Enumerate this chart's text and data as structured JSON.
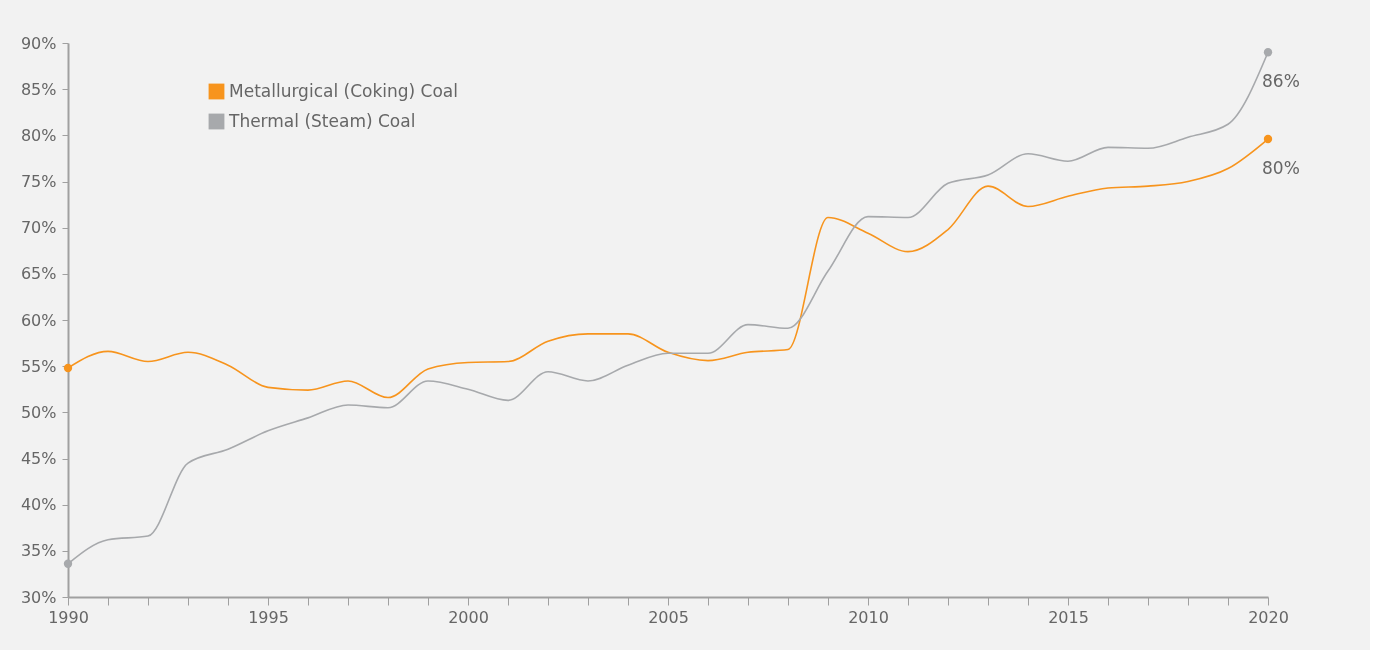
{
  "chart_data": {
    "type": "line",
    "x": [
      1990,
      1991,
      1992,
      1993,
      1994,
      1995,
      1996,
      1997,
      1998,
      1999,
      2000,
      2001,
      2002,
      2003,
      2004,
      2005,
      2006,
      2007,
      2008,
      2009,
      2010,
      2011,
      2012,
      2013,
      2014,
      2015,
      2016,
      2017,
      2018,
      2019,
      2020
    ],
    "series": [
      {
        "name": "Metallurgical (Coking) Coal",
        "color": "#f7941d",
        "values": [
          54.8,
          56.6,
          55.5,
          56.5,
          55.1,
          52.7,
          52.4,
          53.4,
          51.6,
          54.7,
          55.4,
          55.5,
          57.7,
          58.5,
          58.5,
          56.5,
          55.6,
          56.5,
          56.8,
          71.1,
          69.4,
          67.4,
          69.8,
          74.5,
          72.3,
          73.4,
          74.3,
          74.5,
          75.0,
          76.4,
          79.6
        ]
      },
      {
        "name": "Thermal (Steam) Coal",
        "color": "#a7a9ac",
        "values": [
          33.6,
          36.2,
          36.6,
          44.5,
          46.0,
          48.0,
          49.4,
          50.8,
          50.5,
          53.4,
          52.5,
          51.3,
          54.4,
          53.4,
          55.1,
          56.4,
          56.4,
          59.5,
          59.1,
          65.3,
          71.2,
          71.1,
          74.8,
          75.7,
          78.0,
          77.2,
          78.7,
          78.6,
          79.8,
          81.2,
          89.0
        ]
      }
    ],
    "annotations": [
      "80%",
      "86%"
    ],
    "xlim": [
      1990,
      2020
    ],
    "xticks": [
      1990,
      {
        "value": 1991,
        "label": null
      },
      {
        "value": 1992,
        "label": null
      },
      {
        "value": 1993,
        "label": null
      },
      {
        "value": 1994,
        "label": null
      },
      1995,
      {
        "value": 1996,
        "label": null
      },
      {
        "value": 1997,
        "label": null
      },
      {
        "value": 1998,
        "label": null
      },
      {
        "value": 1999,
        "label": null
      },
      2000,
      {
        "value": 2001,
        "label": null
      },
      {
        "value": 2002,
        "label": null
      },
      {
        "value": 2003,
        "label": null
      },
      {
        "value": 2004,
        "label": null
      },
      2005,
      {
        "value": 2006,
        "label": null
      },
      {
        "value": 2007,
        "label": null
      },
      {
        "value": 2008,
        "label": null
      },
      {
        "value": 2009,
        "label": null
      },
      2010,
      {
        "value": 2011,
        "label": null
      },
      {
        "value": 2012,
        "label": null
      },
      {
        "value": 2013,
        "label": null
      },
      {
        "value": 2014,
        "label": null
      },
      2015,
      {
        "value": 2016,
        "label": null
      },
      {
        "value": 2017,
        "label": null
      },
      {
        "value": 2018,
        "label": null
      },
      {
        "value": 2019,
        "label": null
      },
      2020
    ],
    "ylim": [
      30,
      90
    ],
    "yticks": [
      {
        "value": 30,
        "label": "30%"
      },
      {
        "value": 35,
        "label": "35%"
      },
      {
        "value": 40,
        "label": "40%"
      },
      {
        "value": 45,
        "label": "45%"
      },
      {
        "value": 50,
        "label": "50%"
      },
      {
        "value": 55,
        "label": "55%"
      },
      {
        "value": 60,
        "label": "60%"
      },
      {
        "value": 65,
        "label": "65%"
      },
      {
        "value": 70,
        "label": "70%"
      },
      {
        "value": 75,
        "label": "75%"
      },
      {
        "value": 80,
        "label": "80%"
      },
      {
        "value": 85,
        "label": "85%"
      },
      {
        "value": 90,
        "label": "90%"
      }
    ],
    "grid": false,
    "legend": "top left",
    "line_style": "solid"
  }
}
